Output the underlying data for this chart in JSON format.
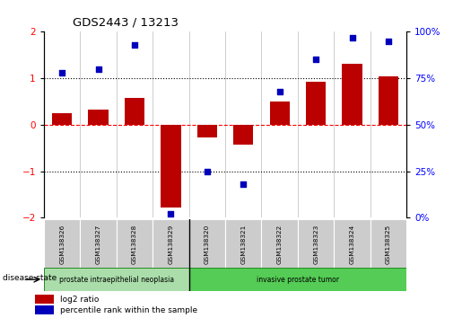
{
  "title": "GDS2443 / 13213",
  "samples": [
    "GSM138326",
    "GSM138327",
    "GSM138328",
    "GSM138329",
    "GSM138320",
    "GSM138321",
    "GSM138322",
    "GSM138323",
    "GSM138324",
    "GSM138325"
  ],
  "log2_ratio": [
    0.25,
    0.32,
    0.58,
    -1.78,
    -0.28,
    -0.42,
    0.5,
    0.92,
    1.32,
    1.05
  ],
  "percentile_rank": [
    78,
    80,
    93,
    2,
    25,
    18,
    68,
    85,
    97,
    95
  ],
  "disease_groups": [
    {
      "label": "prostate intraepithelial neoplasia",
      "start": 0,
      "end": 4,
      "color": "#aaddaa"
    },
    {
      "label": "invasive prostate tumor",
      "start": 4,
      "end": 10,
      "color": "#55cc55"
    }
  ],
  "bar_color": "#bb0000",
  "dot_color": "#0000bb",
  "ylim_left": [
    -2,
    2
  ],
  "ylim_right": [
    0,
    100
  ],
  "yticks_left": [
    -2,
    -1,
    0,
    1,
    2
  ],
  "yticks_right": [
    0,
    25,
    50,
    75,
    100
  ],
  "ytick_labels_right": [
    "0%",
    "25%",
    "50%",
    "75%",
    "100%"
  ],
  "legend_log2": "log2 ratio",
  "legend_pct": "percentile rank within the sample",
  "disease_state_label": "disease state",
  "sample_box_color": "#cccccc",
  "group_separator": 3.5
}
